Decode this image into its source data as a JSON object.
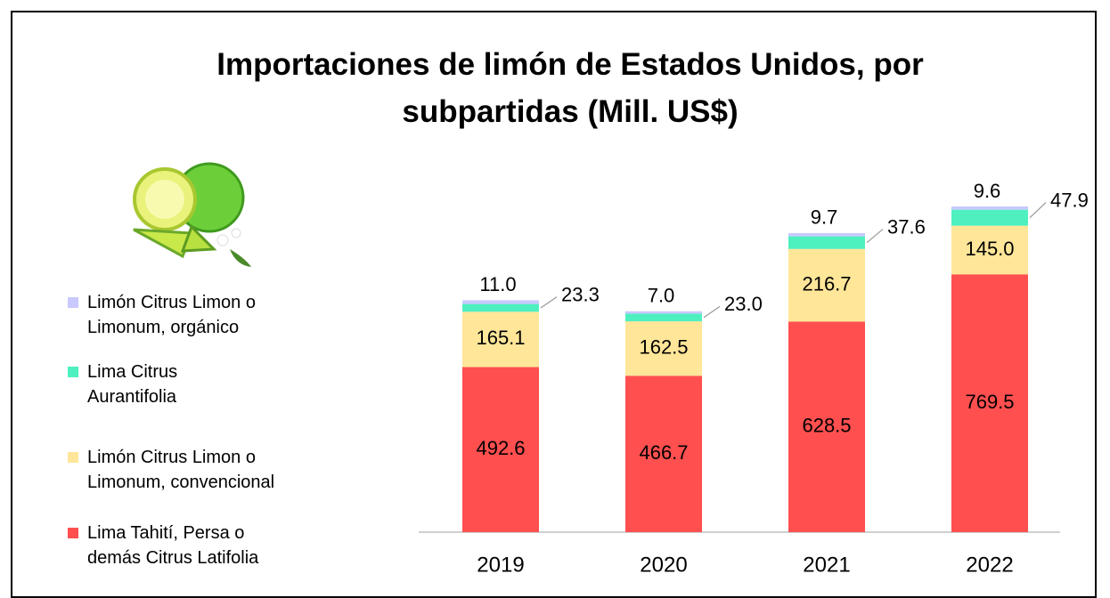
{
  "chart_data": {
    "type": "stacked-bar",
    "title": "Importaciones de limón de Estados Unidos, por subpartidas (Mill. US$)",
    "categories": [
      "2019",
      "2020",
      "2021",
      "2022"
    ],
    "series": [
      {
        "name": "Lima Tahití, Persa o demás Citrus Latifolia",
        "color": "#ff4f4f",
        "values": [
          492.6,
          466.7,
          628.5,
          769.5
        ]
      },
      {
        "name": "Limón Citrus Limon o Limonum, convencional",
        "color": "#ffe699",
        "values": [
          165.1,
          162.5,
          216.7,
          145.0
        ],
        "value_labels": [
          "165.1",
          "162.5",
          "216.7",
          "145.0"
        ]
      },
      {
        "name": "Lima Citrus Aurantifolia",
        "color": "#4ef0c0",
        "values": [
          23.3,
          23.0,
          37.6,
          47.9
        ],
        "value_labels": [
          "23.3",
          "23.0",
          "37.6",
          "47.9"
        ]
      },
      {
        "name": "Limón Citrus Limon o Limonum, orgánico",
        "color": "#c9c9ff",
        "values": [
          11.0,
          7.0,
          9.7,
          9.6
        ],
        "value_labels": [
          "11.0",
          "7.0",
          "9.7",
          "9.6"
        ]
      }
    ]
  }
}
